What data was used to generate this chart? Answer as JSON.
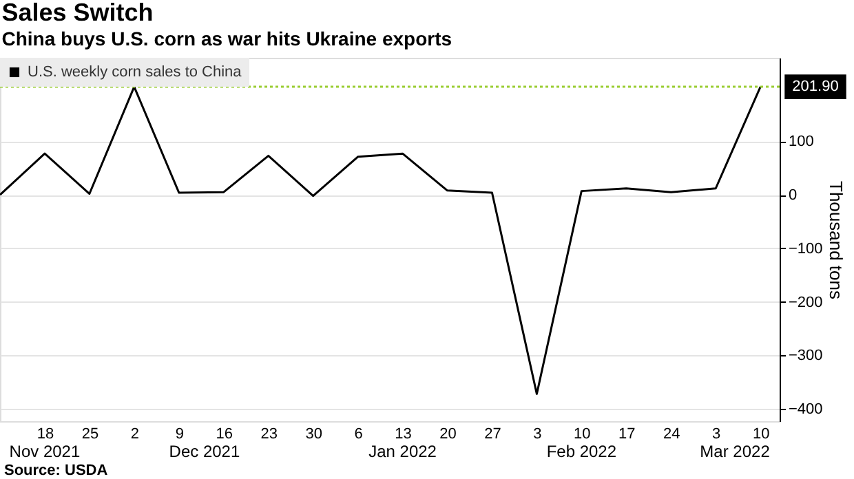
{
  "chart_data": {
    "type": "line",
    "title": "Sales Switch",
    "subtitle": "China buys U.S. corn as war hits Ukraine exports",
    "ylabel": "Thousand tons",
    "x": [
      "2021-11-11",
      "2021-11-18",
      "2021-11-25",
      "2021-12-02",
      "2021-12-09",
      "2021-12-16",
      "2021-12-23",
      "2021-12-30",
      "2022-01-06",
      "2022-01-13",
      "2022-01-20",
      "2022-01-27",
      "2022-02-03",
      "2022-02-10",
      "2022-02-17",
      "2022-02-24",
      "2022-03-03",
      "2022-03-10"
    ],
    "series": [
      {
        "name": "U.S. weekly corn sales to China",
        "color": "#000000",
        "values": [
          0,
          77,
          2,
          201.9,
          4,
          5,
          73,
          -2,
          71,
          77,
          8,
          4,
          -372,
          7,
          12,
          5,
          12,
          201.9
        ]
      }
    ],
    "xlim": [
      "2021-11-11",
      "2022-03-13"
    ],
    "xticks": [
      {
        "value": "2021-11-18",
        "label": "18"
      },
      {
        "value": "2021-11-25",
        "label": "25"
      },
      {
        "value": "2021-12-02",
        "label": "2"
      },
      {
        "value": "2021-12-09",
        "label": "9"
      },
      {
        "value": "2021-12-16",
        "label": "16"
      },
      {
        "value": "2021-12-23",
        "label": "23"
      },
      {
        "value": "2021-12-30",
        "label": "30"
      },
      {
        "value": "2022-01-06",
        "label": "6"
      },
      {
        "value": "2022-01-13",
        "label": "13"
      },
      {
        "value": "2022-01-20",
        "label": "20"
      },
      {
        "value": "2022-01-27",
        "label": "27"
      },
      {
        "value": "2022-02-03",
        "label": "3"
      },
      {
        "value": "2022-02-10",
        "label": "10"
      },
      {
        "value": "2022-02-17",
        "label": "17"
      },
      {
        "value": "2022-02-24",
        "label": "24"
      },
      {
        "value": "2022-03-03",
        "label": "3"
      },
      {
        "value": "2022-03-10",
        "label": "10"
      }
    ],
    "x2lim": [
      "2021-11-11",
      "2022-03-13"
    ],
    "x2ticks": [
      {
        "value": "2021-11-18",
        "label": "Nov 2021"
      },
      {
        "value": "2021-12-13",
        "label": "Dec 2021"
      },
      {
        "value": "2022-01-13",
        "label": "Jan 2022"
      },
      {
        "value": "2022-02-10",
        "label": "Feb 2022"
      },
      {
        "value": "2022-03-06",
        "label": "Mar 2022"
      }
    ],
    "ylim": [
      -423,
      256
    ],
    "yticks": [
      -400,
      -300,
      -200,
      -100,
      0,
      100
    ],
    "ref_lines": [
      {
        "axis": "y",
        "value": 201.9,
        "label": "201.90",
        "color": "#9acd32",
        "line_style": "dotted"
      }
    ],
    "annotations": [
      "Source: USDA"
    ],
    "grid": "y",
    "legend": "top left",
    "marker": "none",
    "line_style": "solid"
  }
}
